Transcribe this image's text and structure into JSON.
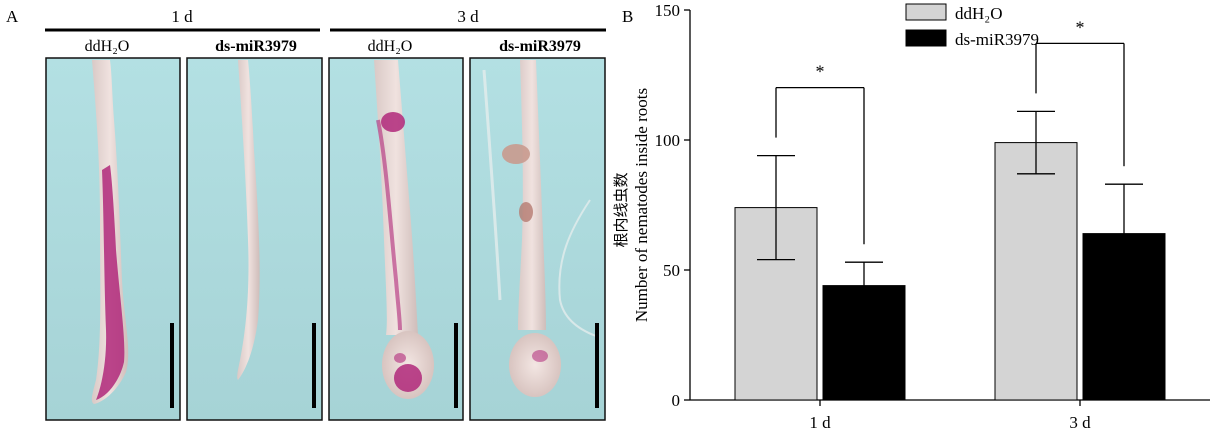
{
  "panel_a": {
    "label": "A",
    "groups": [
      {
        "label": "1 d",
        "columns": [
          "ddH₂O",
          "ds-miR3979"
        ]
      },
      {
        "label": "3 d",
        "columns": [
          "ddH₂O",
          "ds-miR3979"
        ]
      }
    ],
    "photo_count": 4
  },
  "panel_b": {
    "label": "B"
  },
  "colors": {
    "ddH2O": "#d4d4d4",
    "ds_miR3979": "#000000",
    "photo_bg": "#a9d8db",
    "stain": "#b0287a"
  },
  "chart_data": {
    "type": "bar",
    "title": "",
    "categories": [
      "1 d",
      "3 d"
    ],
    "series": [
      {
        "name": "ddH₂O",
        "values": [
          74,
          99
        ],
        "error": [
          20,
          12
        ],
        "color": "#d4d4d4"
      },
      {
        "name": "ds-miR3979",
        "values": [
          44,
          64
        ],
        "error": [
          9,
          19
        ],
        "color": "#000000"
      }
    ],
    "xlabel": "",
    "ylabel": "Number of nematodes inside roots",
    "ylabel_cn": "根内线虫数",
    "ylim": [
      0,
      150
    ],
    "yticks": [
      0,
      50,
      100,
      150
    ],
    "significance": [
      {
        "category": "1 d",
        "label": "*"
      },
      {
        "category": "3 d",
        "label": "*"
      }
    ],
    "legend_position": "top-center",
    "grid": false
  }
}
